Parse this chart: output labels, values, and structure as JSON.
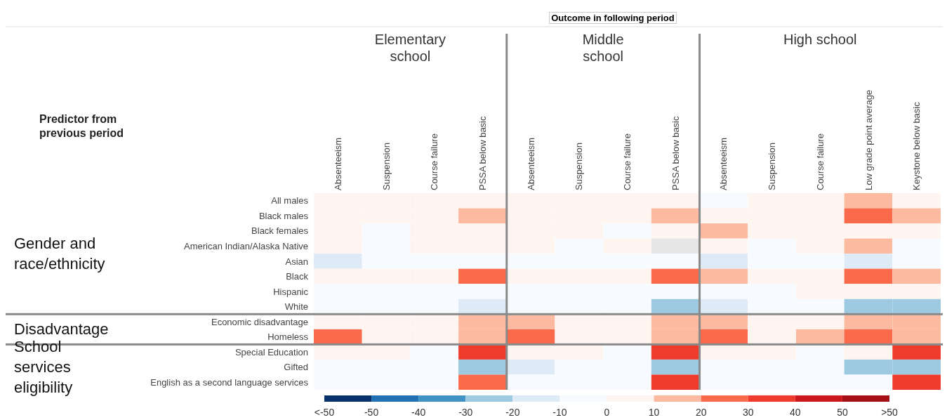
{
  "chart_data": {
    "type": "heatmap",
    "categories": [
      "Absenteeism",
      "Suspension",
      "Course failure",
      "PSSA below basic",
      "Absenteeism",
      "Suspension",
      "Course failure",
      "PSSA below basic",
      "Absenteeism",
      "Suspension",
      "Course failure",
      "Low grade point average",
      "Keystone below basic"
    ],
    "y_categories": [
      "All males",
      "Black males",
      "Black females",
      "American Indian/Alaska Native",
      "Asian",
      "Black",
      "Hispanic",
      "White",
      "Economic disadvantage",
      "Homeless",
      "Special Education",
      "Gifted",
      "English as a second language services"
    ],
    "cells": [
      [
        5,
        5,
        5,
        5,
        5,
        5,
        5,
        5,
        -5,
        5,
        5,
        15,
        5
      ],
      [
        5,
        5,
        5,
        15,
        5,
        5,
        5,
        15,
        5,
        5,
        5,
        25,
        15
      ],
      [
        5,
        -5,
        5,
        5,
        5,
        5,
        -5,
        5,
        15,
        5,
        5,
        5,
        5
      ],
      [
        5,
        -5,
        5,
        5,
        5,
        -5,
        5,
        null,
        5,
        -5,
        5,
        15,
        -5
      ],
      [
        -15,
        -5,
        -5,
        -5,
        -5,
        -5,
        -5,
        -5,
        -15,
        -5,
        -5,
        -15,
        -5
      ],
      [
        5,
        5,
        5,
        25,
        5,
        5,
        5,
        25,
        15,
        5,
        5,
        25,
        15
      ],
      [
        -5,
        -5,
        -5,
        -5,
        -5,
        -5,
        -5,
        -5,
        -5,
        -5,
        5,
        5,
        5
      ],
      [
        -5,
        -5,
        -5,
        -15,
        -5,
        -5,
        -5,
        -25,
        -15,
        -5,
        -5,
        -25,
        -25
      ],
      [
        5,
        5,
        5,
        15,
        15,
        5,
        5,
        15,
        15,
        5,
        5,
        15,
        15
      ],
      [
        25,
        5,
        5,
        15,
        25,
        5,
        5,
        15,
        25,
        5,
        15,
        25,
        15
      ],
      [
        5,
        5,
        -5,
        35,
        5,
        5,
        -5,
        35,
        5,
        5,
        -5,
        5,
        35
      ],
      [
        -5,
        -5,
        -5,
        -25,
        -15,
        -5,
        -5,
        -25,
        -5,
        -5,
        -5,
        -25,
        -25
      ],
      [
        -5,
        -5,
        -5,
        25,
        -5,
        -5,
        -5,
        35,
        -5,
        -5,
        -5,
        -5,
        35
      ]
    ],
    "clim": [
      -60,
      60
    ],
    "cticks": [
      {
        "value": -60,
        "label": "<-50"
      },
      {
        "value": -50,
        "label": "-50"
      },
      {
        "value": -40,
        "label": "-40"
      },
      {
        "value": -30,
        "label": "-30"
      },
      {
        "value": -20,
        "label": "-20"
      },
      {
        "value": -10,
        "label": "-10"
      },
      {
        "value": 0,
        "label": "0"
      },
      {
        "value": 10,
        "label": "10"
      },
      {
        "value": 20,
        "label": "20"
      },
      {
        "value": 30,
        "label": "30"
      },
      {
        "value": 40,
        "label": "40"
      },
      {
        "value": 50,
        "label": "50"
      },
      {
        "value": 60,
        "label": ">50"
      }
    ],
    "annotations": [
      "Outcome in following period",
      "Elementary school",
      "Middle school",
      "High school",
      "Predictor from previous period",
      "Gender and race/ethnicity",
      "Disadvantage",
      "School services eligibility"
    ]
  }
}
